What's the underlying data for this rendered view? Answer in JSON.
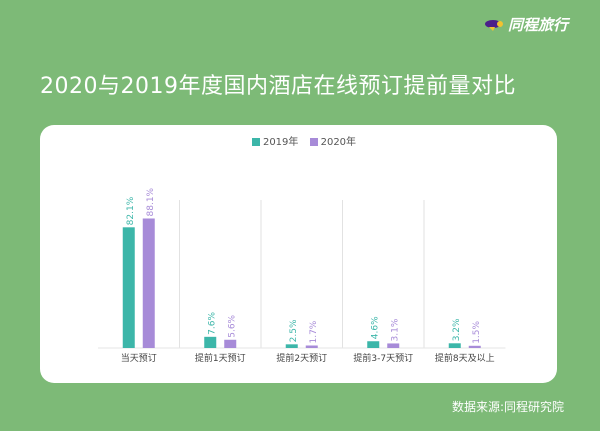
{
  "brand": {
    "name": "同程旅行",
    "icon": "bird-logo-icon"
  },
  "chart_data": {
    "type": "bar",
    "title": "2020与2019年度国内酒店在线预订提前量对比",
    "categories": [
      "当天预订",
      "提前1天预订",
      "提前2天预订",
      "提前3-7天预订",
      "提前8天及以上"
    ],
    "series": [
      {
        "name": "2019年",
        "color": "#3cb6a9",
        "values": [
          82.1,
          7.6,
          2.5,
          4.6,
          3.2
        ],
        "labels": [
          "82.1%",
          "7.6%",
          "2.5%",
          "4.6%",
          "3.2%"
        ]
      },
      {
        "name": "2020年",
        "color": "#a78bd8",
        "values": [
          88.1,
          5.6,
          1.7,
          3.1,
          1.5
        ],
        "labels": [
          "88.1%",
          "5.6%",
          "1.7%",
          "3.1%",
          "1.5%"
        ]
      }
    ],
    "ylim": [
      0,
      100
    ],
    "legend": "top-center",
    "grid": "vertical separators"
  },
  "source": "数据来源:同程研究院"
}
